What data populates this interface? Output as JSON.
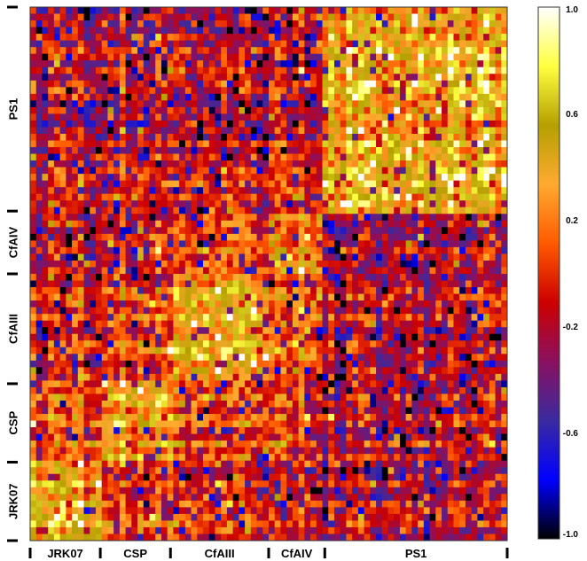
{
  "chart_data": {
    "type": "heatmap",
    "title": "",
    "xlabel": "",
    "ylabel": "",
    "x_groups": [
      "JRK07",
      "CSP",
      "CfAIII",
      "CfAIV",
      "PS1"
    ],
    "y_groups": [
      "JRK07",
      "CSP",
      "CfAIII",
      "CfAIV",
      "PS1"
    ],
    "group_sizes": [
      10,
      10,
      14,
      8,
      26
    ],
    "block_means": [
      [
        0.45,
        0.05,
        -0.05,
        -0.1,
        -0.2
      ],
      [
        0.05,
        0.4,
        0.1,
        0.0,
        -0.15
      ],
      [
        -0.05,
        0.1,
        0.45,
        0.15,
        -0.15
      ],
      [
        -0.1,
        0.0,
        0.15,
        0.35,
        -0.1
      ],
      [
        -0.2,
        -0.15,
        -0.15,
        -0.1,
        0.45
      ]
    ],
    "colorbar": {
      "min": -1.0,
      "max": 1.0,
      "ticks": [
        "1.0",
        "0.6",
        "0.2",
        "-0.2",
        "-0.6",
        "-1.0"
      ],
      "tick_values": [
        1.0,
        0.6,
        0.2,
        -0.2,
        -0.6,
        -1.0
      ],
      "colors": [
        "#000000",
        "#0000ff",
        "#3a2aa0",
        "#8a1060",
        "#cc0000",
        "#ff5a00",
        "#ffaa30",
        "#b5a000",
        "#ffff40",
        "#ffffff"
      ]
    },
    "legend": "right"
  }
}
